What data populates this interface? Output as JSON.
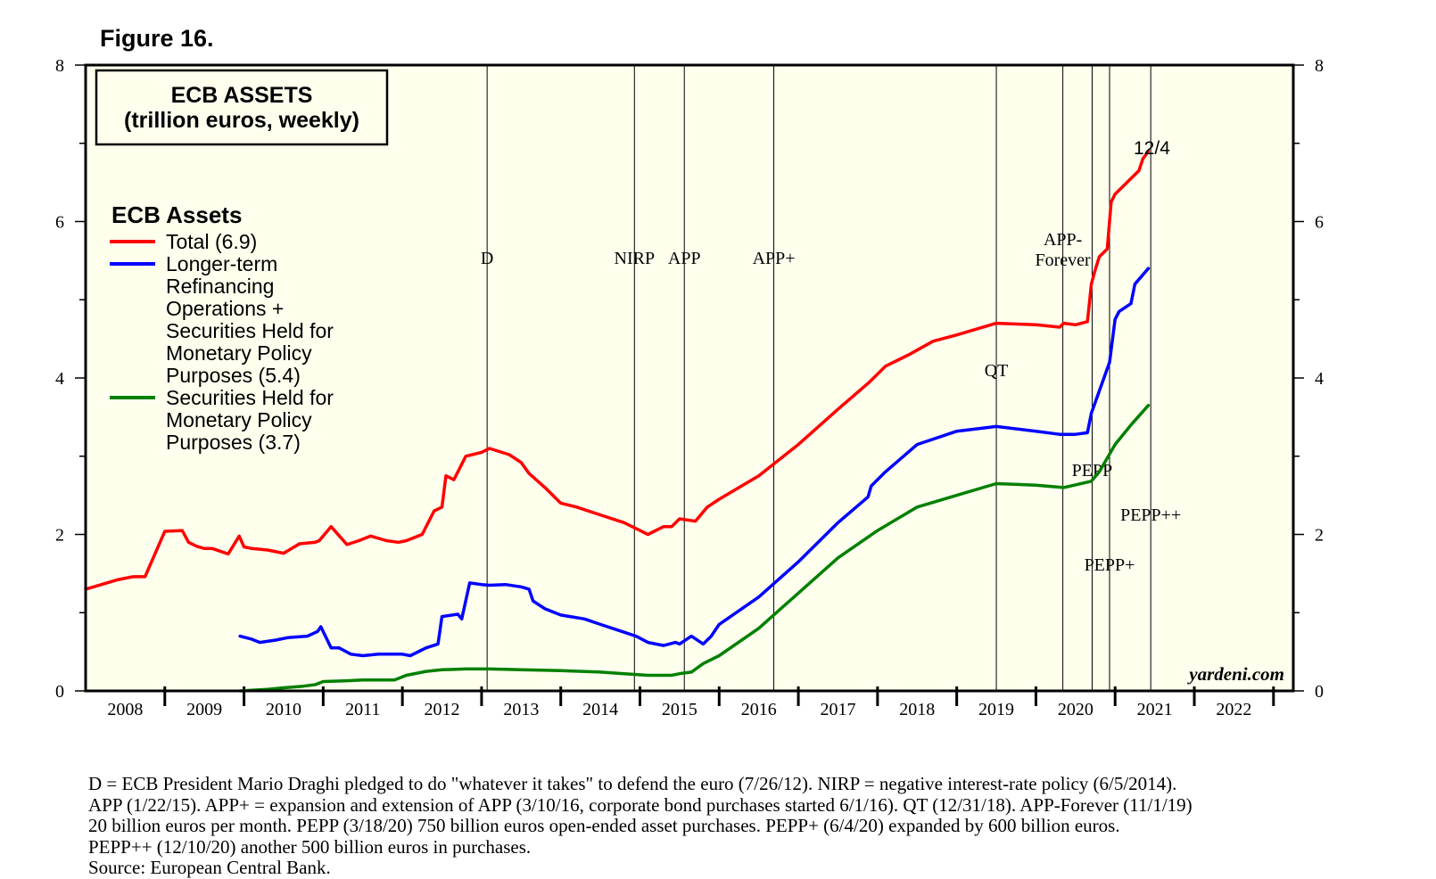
{
  "figure_label": "Figure 16.",
  "chart_data": {
    "type": "line",
    "title": "ECB ASSETS",
    "subtitle": "(trillion euros, weekly)",
    "legend_title": "ECB Assets",
    "legend_position": "top-left",
    "legend": [
      {
        "key": "total",
        "lines": [
          "Total (6.9)"
        ]
      },
      {
        "key": "ltro",
        "lines": [
          "Longer-term",
          "Refinancing",
          "Operations +",
          "Securities Held for",
          "Monetary Policy",
          "Purposes (5.4)"
        ]
      },
      {
        "key": "securities",
        "lines": [
          "Securities Held for",
          "Monetary Policy",
          "Purposes (3.7)"
        ]
      }
    ],
    "ylim": [
      0,
      8
    ],
    "xlim": [
      2007.5,
      2022.75
    ],
    "y_ticks": [
      "0",
      "2",
      "4",
      "6",
      "8"
    ],
    "x_ticks": [
      "2008",
      "2009",
      "2010",
      "2011",
      "2012",
      "2013",
      "2014",
      "2015",
      "2016",
      "2017",
      "2018",
      "2019",
      "2020",
      "2021",
      "2022"
    ],
    "grid": false,
    "colors": {
      "total": "#ff0000",
      "ltro": "#0000ff",
      "securities": "#008000",
      "background": "#ffffee",
      "end_label": "#ff0000"
    },
    "end_label": "12/4",
    "watermark": "yardeni.com",
    "events": [
      {
        "label": "D",
        "x": 2012.57
      },
      {
        "label": "NIRP",
        "x": 2014.43
      },
      {
        "label": "APP",
        "x": 2015.06
      },
      {
        "label": "APP+",
        "x": 2016.19
      },
      {
        "label": "QT",
        "x": 2019.0
      },
      {
        "label": "APP-\nForever",
        "x": 2019.84
      },
      {
        "label": "PEPP",
        "x": 2020.21
      },
      {
        "label": "PEPP+",
        "x": 2020.43
      },
      {
        "label": "PEPP++",
        "x": 2020.95
      }
    ],
    "series": [
      {
        "name": "Total",
        "key": "total",
        "x": [
          2007.5,
          2007.7,
          2007.9,
          2008.1,
          2008.25,
          2008.5,
          2008.72,
          2008.8,
          2008.9,
          2009.0,
          2009.1,
          2009.3,
          2009.44,
          2009.5,
          2009.6,
          2009.8,
          2010.0,
          2010.2,
          2010.4,
          2010.45,
          2010.6,
          2010.8,
          2010.95,
          2011.1,
          2011.3,
          2011.45,
          2011.55,
          2011.75,
          2011.9,
          2012.0,
          2012.05,
          2012.15,
          2012.3,
          2012.5,
          2012.6,
          2012.85,
          2013.0,
          2013.1,
          2013.3,
          2013.5,
          2013.7,
          2014.0,
          2014.3,
          2014.5,
          2014.6,
          2014.8,
          2014.9,
          2015.0,
          2015.2,
          2015.35,
          2015.5,
          2016.0,
          2016.5,
          2017.0,
          2017.4,
          2017.55,
          2017.6,
          2017.9,
          2018.2,
          2018.5,
          2019.0,
          2019.5,
          2019.8,
          2019.85,
          2020.0,
          2020.15,
          2020.2,
          2020.24,
          2020.3,
          2020.4,
          2020.45,
          2020.5,
          2020.55,
          2020.7,
          2020.8,
          2020.85,
          2020.92
        ],
        "values": [
          1.3,
          1.36,
          1.42,
          1.46,
          1.46,
          2.04,
          2.05,
          1.9,
          1.85,
          1.82,
          1.82,
          1.75,
          1.98,
          1.84,
          1.82,
          1.8,
          1.76,
          1.88,
          1.9,
          1.92,
          2.1,
          1.87,
          1.92,
          1.98,
          1.92,
          1.9,
          1.92,
          2.0,
          2.3,
          2.35,
          2.75,
          2.7,
          3.0,
          3.05,
          3.1,
          3.02,
          2.92,
          2.78,
          2.6,
          2.4,
          2.35,
          2.25,
          2.15,
          2.05,
          2.0,
          2.1,
          2.1,
          2.2,
          2.17,
          2.35,
          2.45,
          2.75,
          3.15,
          3.6,
          3.95,
          4.1,
          4.15,
          4.3,
          4.47,
          4.55,
          4.7,
          4.68,
          4.65,
          4.7,
          4.68,
          4.72,
          5.2,
          5.35,
          5.55,
          5.65,
          6.25,
          6.35,
          6.4,
          6.55,
          6.65,
          6.8,
          6.9
        ]
      },
      {
        "name": "Longer-term Refinancing Operations + Securities Held for Monetary Policy Purposes",
        "key": "ltro",
        "x": [
          2009.45,
          2009.6,
          2009.7,
          2009.9,
          2010.05,
          2010.3,
          2010.43,
          2010.47,
          2010.6,
          2010.7,
          2010.85,
          2011.0,
          2011.2,
          2011.5,
          2011.6,
          2011.8,
          2011.95,
          2012.0,
          2012.2,
          2012.25,
          2012.35,
          2012.5,
          2012.6,
          2012.8,
          2013.0,
          2013.1,
          2013.15,
          2013.3,
          2013.5,
          2013.8,
          2014.0,
          2014.3,
          2014.45,
          2014.6,
          2014.8,
          2014.95,
          2015.0,
          2015.15,
          2015.3,
          2015.4,
          2015.5,
          2016.0,
          2016.5,
          2017.0,
          2017.38,
          2017.42,
          2017.6,
          2018.0,
          2018.5,
          2019.0,
          2019.5,
          2019.8,
          2020.0,
          2020.15,
          2020.2,
          2020.43,
          2020.5,
          2020.55,
          2020.7,
          2020.75,
          2020.92
        ],
        "values": [
          0.7,
          0.66,
          0.62,
          0.65,
          0.68,
          0.7,
          0.76,
          0.82,
          0.55,
          0.55,
          0.47,
          0.45,
          0.47,
          0.47,
          0.45,
          0.55,
          0.6,
          0.95,
          0.98,
          0.92,
          1.38,
          1.36,
          1.35,
          1.36,
          1.33,
          1.3,
          1.15,
          1.05,
          0.97,
          0.92,
          0.85,
          0.75,
          0.7,
          0.62,
          0.58,
          0.62,
          0.6,
          0.7,
          0.6,
          0.7,
          0.85,
          1.2,
          1.65,
          2.15,
          2.48,
          2.62,
          2.8,
          3.15,
          3.32,
          3.38,
          3.32,
          3.28,
          3.28,
          3.3,
          3.55,
          4.2,
          4.75,
          4.85,
          4.95,
          5.2,
          5.4
        ]
      },
      {
        "name": "Securities Held for Monetary Policy Purposes",
        "key": "securities",
        "x": [
          2009.45,
          2009.8,
          2010.0,
          2010.25,
          2010.4,
          2010.5,
          2010.8,
          2011.0,
          2011.4,
          2011.55,
          2011.8,
          2012.0,
          2012.3,
          2012.6,
          2013.0,
          2013.5,
          2014.0,
          2014.3,
          2014.6,
          2014.9,
          2015.0,
          2015.15,
          2015.3,
          2015.5,
          2016.0,
          2016.5,
          2017.0,
          2017.5,
          2018.0,
          2018.5,
          2019.0,
          2019.5,
          2019.85,
          2020.2,
          2020.3,
          2020.5,
          2020.7,
          2020.92
        ],
        "values": [
          0.0,
          0.02,
          0.04,
          0.06,
          0.08,
          0.12,
          0.13,
          0.14,
          0.14,
          0.2,
          0.25,
          0.27,
          0.28,
          0.28,
          0.27,
          0.26,
          0.24,
          0.22,
          0.2,
          0.2,
          0.22,
          0.24,
          0.35,
          0.45,
          0.8,
          1.25,
          1.7,
          2.05,
          2.35,
          2.5,
          2.65,
          2.63,
          2.6,
          2.68,
          2.8,
          3.15,
          3.4,
          3.65
        ]
      }
    ]
  },
  "footnote": [
    "D = ECB President Mario Draghi pledged to do \"whatever it takes\" to defend the euro (7/26/12). NIRP = negative interest-rate policy (6/5/2014).",
    "APP (1/22/15). APP+ = expansion and extension of APP (3/10/16, corporate bond purchases started 6/1/16). QT (12/31/18). APP-Forever (11/1/19)",
    "20 billion euros per month. PEPP (3/18/20) 750 billion euros open-ended asset purchases. PEPP+ (6/4/20) expanded by 600 billion euros.",
    "PEPP++ (12/10/20) another 500 billion euros in purchases.",
    "Source: European Central Bank."
  ]
}
